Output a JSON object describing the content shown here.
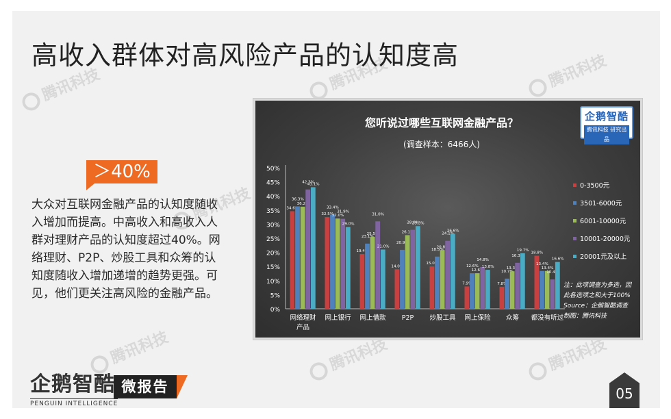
{
  "page": {
    "title": "高收入群体对高风险产品的认知度高",
    "badge": "＞40%",
    "body": "大众对互联网金融产品的认知度随收入增加而提高。中高收入和高收入人群对理财产品的认知度超过40%。网络理财、P2P、炒股工具和众筹的认知度随收入增加递增的趋势更强。可见，他们更关注高风险的金融产品。",
    "watermark": "腾讯科技",
    "chart_logo_main": "企鹅智酷",
    "chart_logo_sub": "腾讯科技 研究出品",
    "footer_logo_main": "企鹅智酷",
    "footer_logo_sub": "PENGUIN INTELLIGENCE",
    "report_tag": "微报告",
    "page_number": "05"
  },
  "colors": {
    "series": [
      "#c94040",
      "#4f81bd",
      "#9bbb59",
      "#8064a2",
      "#4bacc6"
    ],
    "accent": "#ee6a22"
  },
  "chart_data": {
    "type": "bar",
    "title": "您听说过哪些互联网金融产品？",
    "subtitle": "(调查样本：6466人)",
    "categories": [
      "网络理财产品",
      "网上银行",
      "网上借款",
      "P2P",
      "炒股工具",
      "网上保险",
      "众筹",
      "都没有听过"
    ],
    "category_labels": [
      [
        "网络理财",
        "产品"
      ],
      [
        "网上银行"
      ],
      [
        "网上借款"
      ],
      [
        "P2P"
      ],
      [
        "炒股工具"
      ],
      [
        "网上保险"
      ],
      [
        "众筹"
      ],
      [
        "都没有听过"
      ]
    ],
    "series": [
      {
        "name": "0-3500元",
        "values": [
          34.6,
          32.5,
          19.4,
          14.0,
          15.0,
          7.9,
          7.8,
          18.8
        ]
      },
      {
        "name": "3501-6000元",
        "values": [
          36.3,
          33.4,
          23.1,
          20.9,
          18.5,
          12.6,
          10.7,
          13.4
        ]
      },
      {
        "name": "6001-10000元",
        "values": [
          36.2,
          32.0,
          25.5,
          26.1,
          20.8,
          12.6,
          13.3,
          13.4
        ]
      },
      {
        "name": "10001-20000元",
        "values": [
          42.3,
          31.9,
          31.0,
          28.0,
          24.1,
          14.8,
          16.3,
          10.4
        ]
      },
      {
        "name": "20001元及以上",
        "values": [
          43.1,
          29.0,
          21.0,
          29.3,
          26.6,
          13.8,
          19.7,
          16.6
        ]
      }
    ],
    "y_ticks": [
      "0%",
      "5%",
      "10%",
      "15%",
      "20%",
      "25%",
      "30%",
      "35%",
      "40%",
      "45%",
      "50%"
    ],
    "ylim": [
      0,
      50
    ],
    "legend_position": "right",
    "grid": false,
    "notes": [
      "注：此项调查为多选，因",
      "此各选项之和大于100%",
      "Source：企鹅智酷调查",
      "制图：腾讯科技"
    ]
  }
}
